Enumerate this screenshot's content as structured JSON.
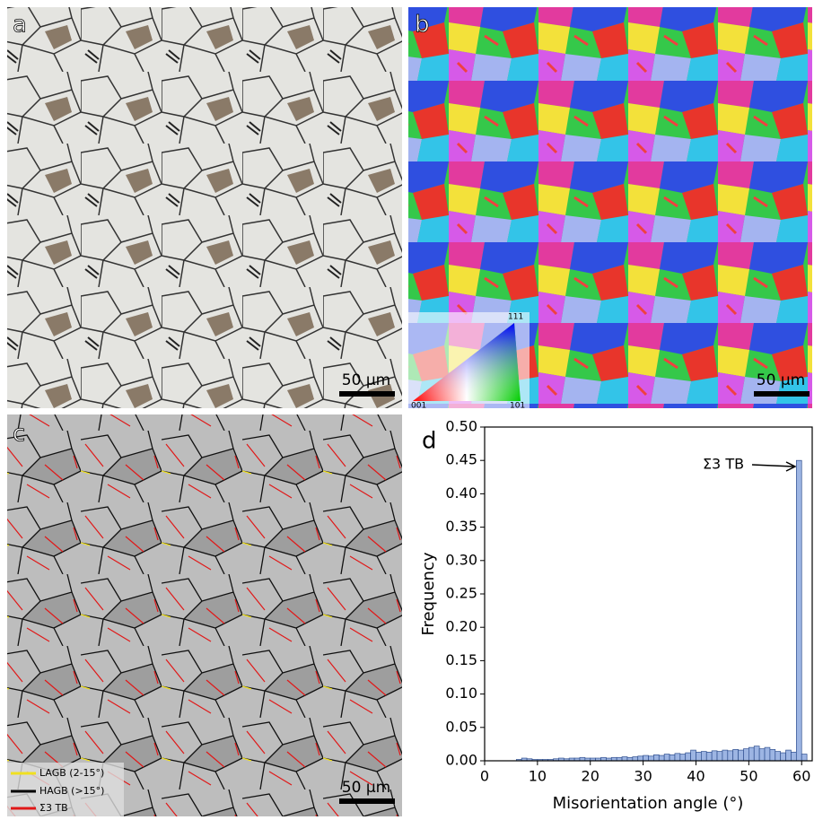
{
  "panels": {
    "a": {
      "label": "a",
      "scale_bar": "50 μm"
    },
    "b": {
      "label": "b",
      "scale_bar": "50 μm",
      "ipf": [
        "001",
        "101",
        "111"
      ]
    },
    "c": {
      "label": "c",
      "scale_bar": "50 μm",
      "legend": [
        "LAGB (2-15°)",
        "HAGB (>15°)",
        "Σ3 TB"
      ]
    }
  },
  "chart_data": {
    "type": "histogram",
    "panel_label": "d",
    "xlabel": "Misorientation angle (°)",
    "ylabel": "Frequency",
    "annotation": "Σ3 TB",
    "color": "#9db5e3",
    "edgecolor": "#2f4f8f",
    "bins": [
      6,
      7,
      8,
      9,
      10,
      11,
      12,
      13,
      14,
      15,
      16,
      17,
      18,
      19,
      20,
      21,
      22,
      23,
      24,
      25,
      26,
      27,
      28,
      29,
      30,
      31,
      32,
      33,
      34,
      35,
      36,
      37,
      38,
      39,
      40,
      41,
      42,
      43,
      44,
      45,
      46,
      47,
      48,
      49,
      50,
      51,
      52,
      53,
      54,
      55,
      56,
      57,
      58,
      59,
      60,
      61
    ],
    "values": [
      0.002,
      0.004,
      0.003,
      0.002,
      0.002,
      0.002,
      0.002,
      0.003,
      0.004,
      0.003,
      0.004,
      0.004,
      0.005,
      0.004,
      0.004,
      0.004,
      0.005,
      0.004,
      0.005,
      0.005,
      0.006,
      0.005,
      0.006,
      0.007,
      0.008,
      0.007,
      0.009,
      0.008,
      0.01,
      0.009,
      0.011,
      0.01,
      0.012,
      0.016,
      0.013,
      0.014,
      0.013,
      0.015,
      0.014,
      0.016,
      0.015,
      0.017,
      0.016,
      0.018,
      0.02,
      0.022,
      0.018,
      0.02,
      0.017,
      0.014,
      0.012,
      0.016,
      0.013,
      0.45,
      0.01
    ],
    "xlim": [
      0,
      62
    ],
    "ylim": [
      0,
      0.5
    ],
    "xticks": [
      0,
      10,
      20,
      30,
      40,
      50,
      60
    ],
    "yticks": [
      {
        "value": 0,
        "label": "0.00"
      },
      {
        "value": 0.05,
        "label": "0.05"
      },
      {
        "value": 0.1,
        "label": "0.10"
      },
      {
        "value": 0.15,
        "label": "0.15"
      },
      {
        "value": 0.2,
        "label": "0.20"
      },
      {
        "value": 0.25,
        "label": "0.25"
      },
      {
        "value": 0.3,
        "label": "0.30"
      },
      {
        "value": 0.35,
        "label": "0.35"
      },
      {
        "value": 0.4,
        "label": "0.40"
      },
      {
        "value": 0.45,
        "label": "0.45"
      },
      {
        "value": 0.5,
        "label": "0.50"
      }
    ]
  }
}
